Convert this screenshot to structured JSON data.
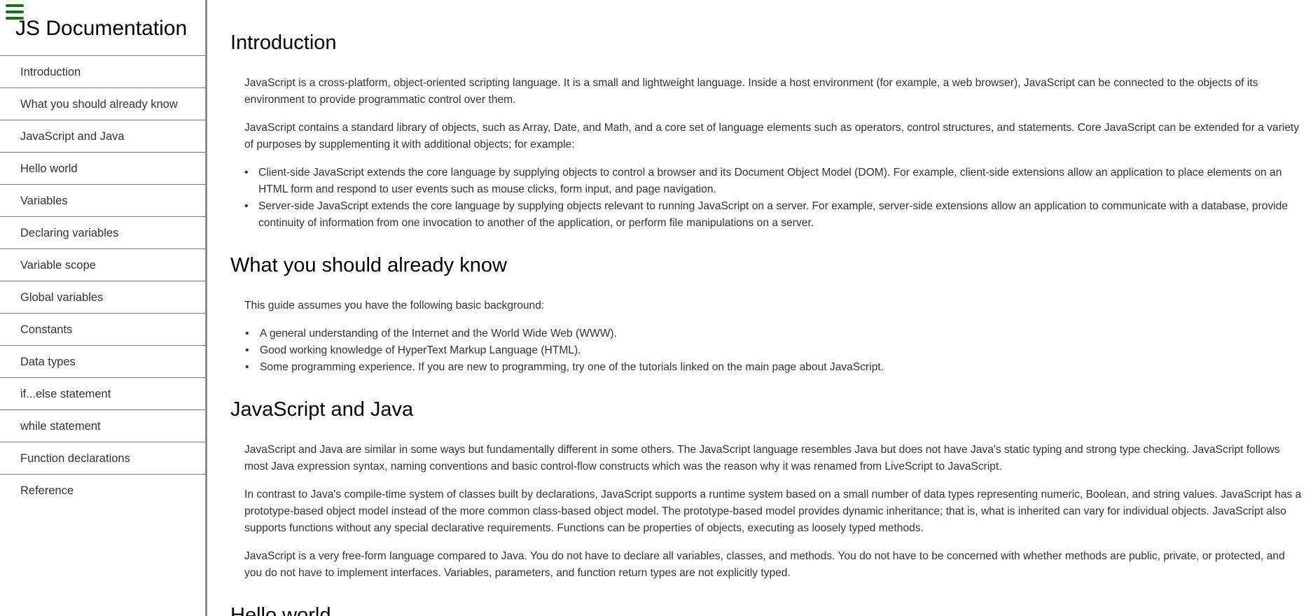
{
  "navbar": {
    "title": "JS Documentation",
    "items": [
      {
        "label": "Introduction"
      },
      {
        "label": "What you should already know"
      },
      {
        "label": "JavaScript and Java"
      },
      {
        "label": "Hello world"
      },
      {
        "label": "Variables"
      },
      {
        "label": "Declaring variables"
      },
      {
        "label": "Variable scope"
      },
      {
        "label": "Global variables"
      },
      {
        "label": "Constants"
      },
      {
        "label": "Data types"
      },
      {
        "label": "if...else statement"
      },
      {
        "label": "while statement"
      },
      {
        "label": "Function declarations"
      },
      {
        "label": "Reference"
      }
    ]
  },
  "main": {
    "introduction": {
      "title": "Introduction",
      "p1": "JavaScript is a cross-platform, object-oriented scripting language. It is a small and lightweight language. Inside a host environment (for example, a web browser), JavaScript can be connected to the objects of its environment to provide programmatic control over them.",
      "p2": "JavaScript contains a standard library of objects, such as Array, Date, and Math, and a core set of language elements such as operators, control structures, and statements. Core JavaScript can be extended for a variety of purposes by supplementing it with additional objects; for example:",
      "bullets": [
        "Client-side JavaScript extends the core language by supplying objects to control a browser and its Document Object Model (DOM). For example, client-side extensions allow an application to place elements on an HTML form and respond to user events such as mouse clicks, form input, and page navigation.",
        "Server-side JavaScript extends the core language by supplying objects relevant to running JavaScript on a server. For example, server-side extensions allow an application to communicate with a database, provide continuity of information from one invocation to another of the application, or perform file manipulations on a server."
      ]
    },
    "know": {
      "title": "What you should already know",
      "p1": "This guide assumes you have the following basic background:",
      "bullets": [
        "A general understanding of the Internet and the World Wide Web (WWW).",
        "Good working knowledge of HyperText Markup Language (HTML).",
        "Some programming experience. If you are new to programming, try one of the tutorials linked on the main page about JavaScript."
      ]
    },
    "java": {
      "title": "JavaScript and Java",
      "p1": "JavaScript and Java are similar in some ways but fundamentally different in some others. The JavaScript language resembles Java but does not have Java's static typing and strong type checking. JavaScript follows most Java expression syntax, naming conventions and basic control-flow constructs which was the reason why it was renamed from LiveScript to JavaScript.",
      "p2": "In contrast to Java's compile-time system of classes built by declarations, JavaScript supports a runtime system based on a small number of data types representing numeric, Boolean, and string values. JavaScript has a prototype-based object model instead of the more common class-based object model. The prototype-based model provides dynamic inheritance; that is, what is inherited can vary for individual objects. JavaScript also supports functions without any special declarative requirements. Functions can be properties of objects, executing as loosely typed methods.",
      "p3": "JavaScript is a very free-form language compared to Java. You do not have to declare all variables, classes, and methods. You do not have to be concerned with whether methods are public, private, or protected, and you do not have to implement interfaces. Variables, parameters, and function return types are not explicitly typed."
    },
    "hello": {
      "title": "Hello world"
    }
  }
}
